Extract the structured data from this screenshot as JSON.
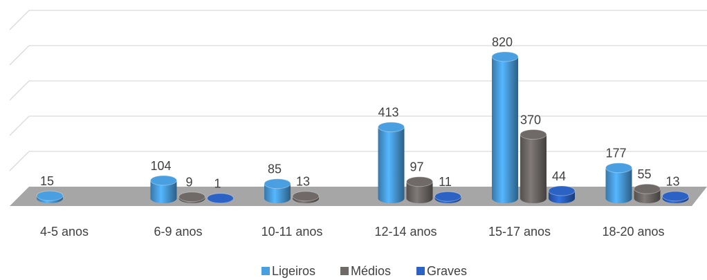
{
  "chart_data": {
    "type": "bar3d",
    "categories": [
      "4-5 anos",
      "6-9 anos",
      "10-11 anos",
      "12-14 anos",
      "15-17 anos",
      "18-20 anos"
    ],
    "series": [
      {
        "name": "Ligeiros",
        "color": "#4a9fe0",
        "values": [
          15,
          104,
          85,
          413,
          820,
          177
        ]
      },
      {
        "name": "Médios",
        "color": "#6f6a68",
        "values": [
          null,
          9,
          13,
          97,
          370,
          55
        ]
      },
      {
        "name": "Graves",
        "color": "#2b62c4",
        "values": [
          null,
          1,
          null,
          11,
          44,
          13
        ]
      }
    ],
    "ylim": [
      0,
      1000
    ],
    "yticks": [
      0,
      200,
      400,
      600,
      800,
      1000
    ],
    "grid": true,
    "legend": "bottom"
  }
}
